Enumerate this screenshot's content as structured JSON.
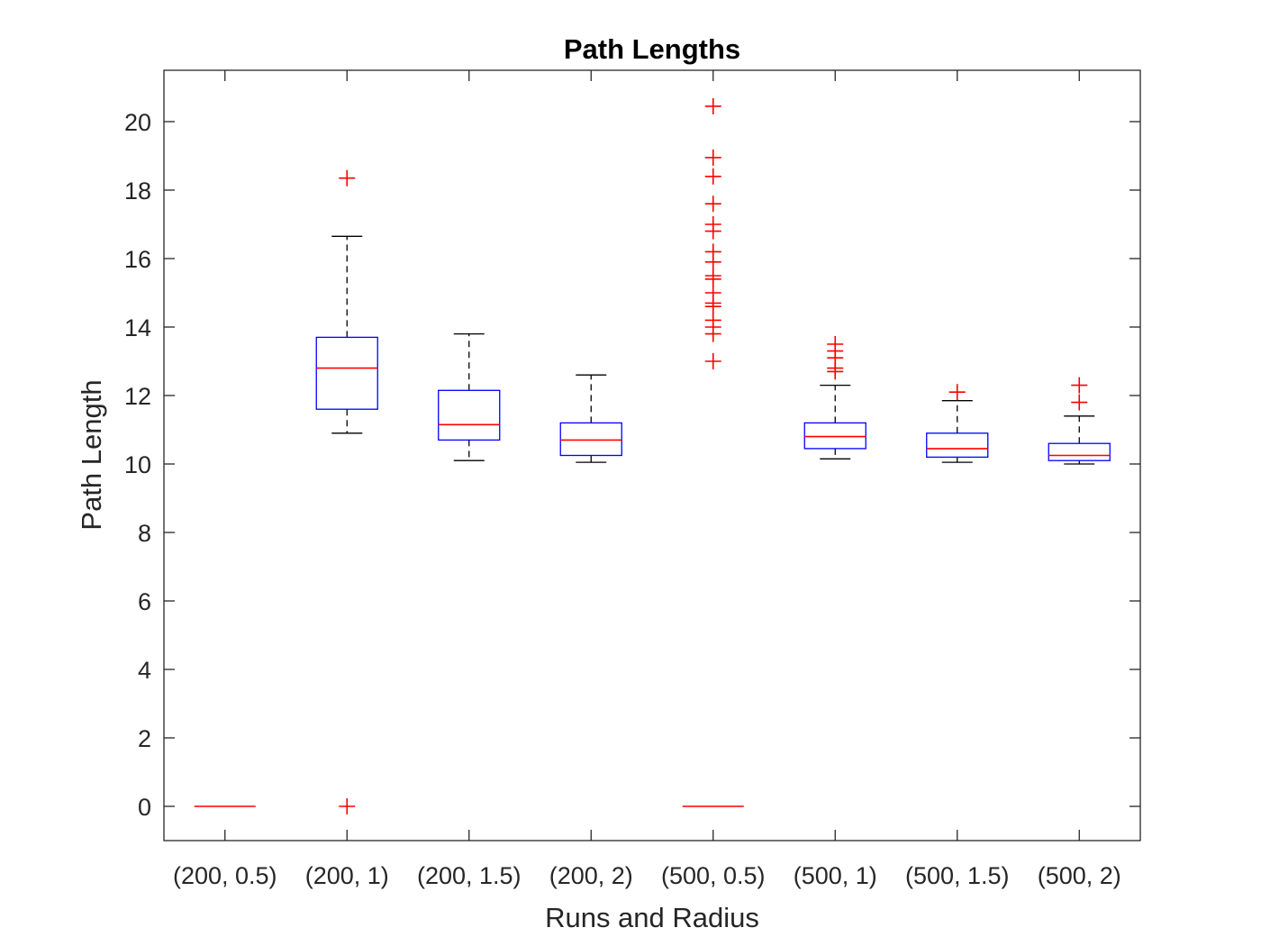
{
  "chart_data": {
    "type": "box",
    "title": "Path Lengths",
    "xlabel": "Runs and Radius",
    "ylabel": "Path Length",
    "ylim": [
      -1,
      21.5
    ],
    "yticks": [
      0,
      2,
      4,
      6,
      8,
      10,
      12,
      14,
      16,
      18,
      20
    ],
    "grid": false,
    "colors": {
      "box": "#0000ff",
      "median": "#ff0000",
      "whisker": "#000000",
      "outlier": "#ff0000",
      "axis": "#262626"
    },
    "categories": [
      "(200, 0.5)",
      "(200, 1)",
      "(200, 1.5)",
      "(200, 2)",
      "(500, 0.5)",
      "(500, 1)",
      "(500, 1.5)",
      "(500, 2)"
    ],
    "boxes": [
      {
        "q1": 0,
        "median": 0,
        "q3": 0,
        "whisker_low": 0,
        "whisker_high": 0,
        "outliers": []
      },
      {
        "q1": 11.6,
        "median": 12.8,
        "q3": 13.7,
        "whisker_low": 10.9,
        "whisker_high": 16.65,
        "outliers": [
          18.35,
          0
        ]
      },
      {
        "q1": 10.7,
        "median": 11.15,
        "q3": 12.15,
        "whisker_low": 10.1,
        "whisker_high": 13.8,
        "outliers": []
      },
      {
        "q1": 10.25,
        "median": 10.7,
        "q3": 11.2,
        "whisker_low": 10.05,
        "whisker_high": 12.6,
        "outliers": []
      },
      {
        "q1": 0,
        "median": 0,
        "q3": 0,
        "whisker_low": 0,
        "whisker_high": 0,
        "outliers": [
          20.45,
          18.95,
          18.4,
          17.6,
          17.0,
          16.8,
          16.2,
          15.9,
          15.5,
          15.4,
          15.0,
          14.7,
          14.6,
          14.2,
          14.0,
          13.8,
          13.0
        ]
      },
      {
        "q1": 10.45,
        "median": 10.8,
        "q3": 11.2,
        "whisker_low": 10.15,
        "whisker_high": 12.3,
        "outliers": [
          13.5,
          13.3,
          13.1,
          12.8,
          12.7
        ]
      },
      {
        "q1": 10.2,
        "median": 10.45,
        "q3": 10.9,
        "whisker_low": 10.05,
        "whisker_high": 11.85,
        "outliers": [
          12.1
        ]
      },
      {
        "q1": 10.1,
        "median": 10.25,
        "q3": 10.6,
        "whisker_low": 10.0,
        "whisker_high": 11.4,
        "outliers": [
          12.3,
          11.8
        ]
      }
    ]
  }
}
